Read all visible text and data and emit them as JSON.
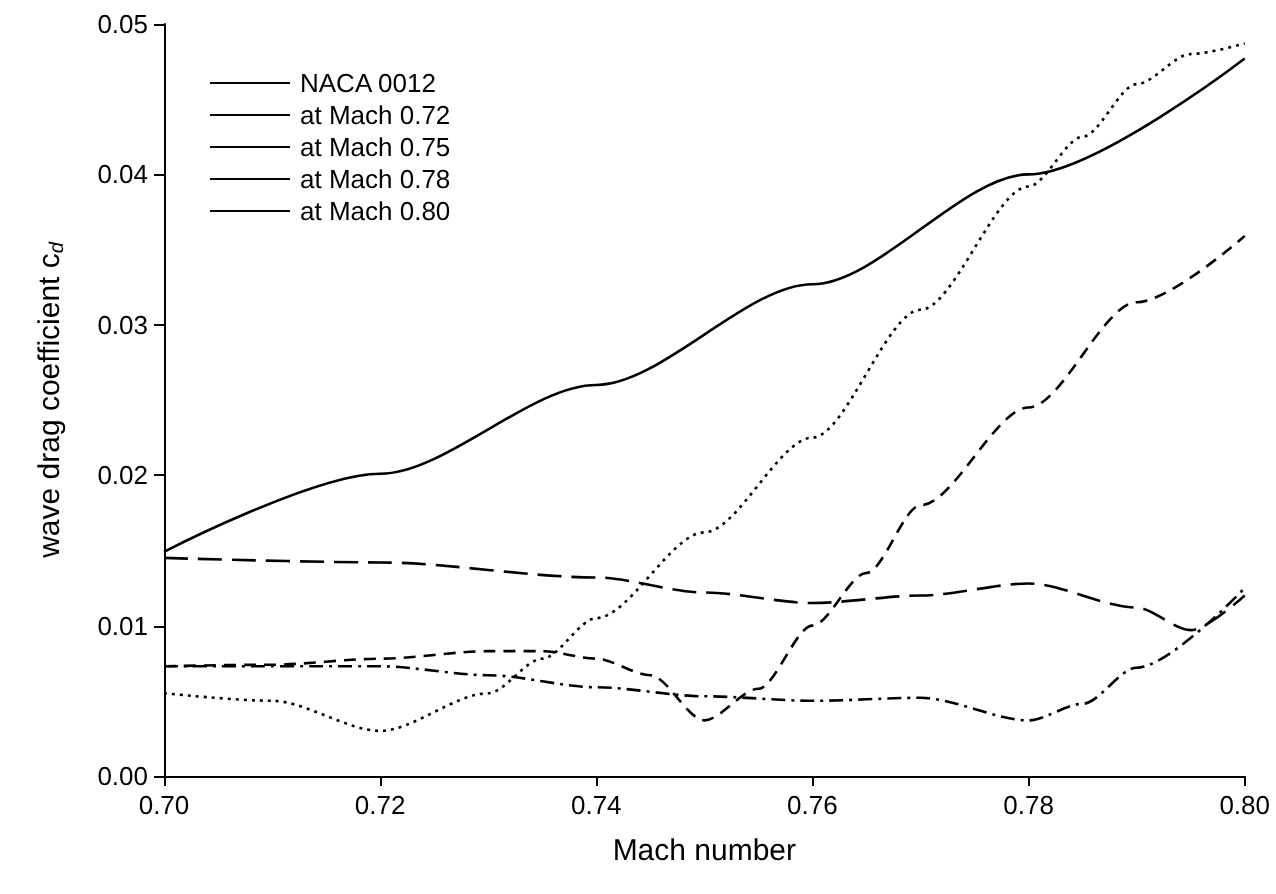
{
  "chart_data": {
    "type": "line",
    "xlabel": "Mach number",
    "ylabel": "wave drag coefficient c$_{d}$",
    "xlim": [
      0.7,
      0.8
    ],
    "xticks": [
      {
        "value": 0.7,
        "label": "0.70"
      },
      {
        "value": 0.72,
        "label": "0.72"
      },
      {
        "value": 0.74,
        "label": "0.74"
      },
      {
        "value": 0.76,
        "label": "0.76"
      },
      {
        "value": 0.78,
        "label": "0.78"
      },
      {
        "value": 0.8,
        "label": "0.80"
      }
    ],
    "ylim": [
      0,
      0.05
    ],
    "yticks": [
      {
        "value": 0,
        "label": "0.00"
      },
      {
        "value": 0.01,
        "label": "0.01"
      },
      {
        "value": 0.02,
        "label": "0.02"
      },
      {
        "value": 0.03,
        "label": "0.03"
      },
      {
        "value": 0.04,
        "label": "0.04"
      },
      {
        "value": 0.05,
        "label": "0.05"
      }
    ],
    "grid": false,
    "legend": "top left",
    "marker": "none",
    "series": [
      {
        "name": "NACA 0012",
        "color": "#000000",
        "line_style": "solid",
        "x": [
          0.7,
          0.72,
          0.74,
          0.76,
          0.78,
          0.8
        ],
        "values": [
          0.0149,
          0.0201,
          0.026,
          0.0327,
          0.04,
          0.0477
        ]
      },
      {
        "name": "at Mach 0.72",
        "color": "#000000",
        "line_style": "dotted",
        "x": [
          0.7,
          0.71,
          0.72,
          0.73,
          0.735,
          0.74,
          0.75,
          0.76,
          0.77,
          0.78,
          0.785,
          0.79,
          0.795,
          0.8
        ],
        "values": [
          0.0055,
          0.005,
          0.003,
          0.0055,
          0.0078,
          0.0105,
          0.0162,
          0.0225,
          0.031,
          0.0392,
          0.0425,
          0.046,
          0.048,
          0.0487
        ]
      },
      {
        "name": "at Mach 0.75",
        "color": "#000000",
        "line_style": "dashed",
        "x": [
          0.7,
          0.71,
          0.72,
          0.73,
          0.735,
          0.74,
          0.745,
          0.75,
          0.755,
          0.76,
          0.765,
          0.77,
          0.78,
          0.79,
          0.8
        ],
        "values": [
          0.0073,
          0.0074,
          0.0078,
          0.0083,
          0.0083,
          0.0078,
          0.0067,
          0.0037,
          0.0058,
          0.01,
          0.0135,
          0.018,
          0.0245,
          0.0315,
          0.0359
        ]
      },
      {
        "name": "at Mach 0.78",
        "color": "#000000",
        "line_style": "dashdot",
        "x": [
          0.7,
          0.72,
          0.73,
          0.74,
          0.75,
          0.76,
          0.77,
          0.78,
          0.785,
          0.79,
          0.8
        ],
        "values": [
          0.0073,
          0.0073,
          0.0067,
          0.0059,
          0.0053,
          0.005,
          0.0052,
          0.0037,
          0.0048,
          0.0072,
          0.0125
        ]
      },
      {
        "name": "at Mach 0.80",
        "color": "#000000",
        "line_style": "longdash",
        "x": [
          0.7,
          0.72,
          0.74,
          0.75,
          0.76,
          0.77,
          0.78,
          0.79,
          0.795,
          0.8
        ],
        "values": [
          0.0145,
          0.0142,
          0.0132,
          0.0122,
          0.0115,
          0.012,
          0.0128,
          0.0112,
          0.0097,
          0.012
        ]
      }
    ]
  }
}
